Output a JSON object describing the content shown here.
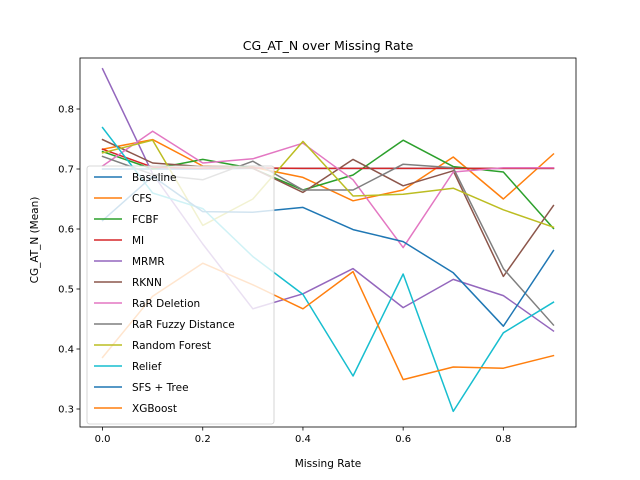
{
  "chart_data": {
    "type": "line",
    "title": "CG_AT_N over Missing Rate",
    "xlabel": "Missing Rate",
    "ylabel": "CG_AT_N (Mean)",
    "x": [
      0.0,
      0.1,
      0.2,
      0.3,
      0.4,
      0.5,
      0.6,
      0.7,
      0.8,
      0.9
    ],
    "xlim": [
      -0.045,
      0.945
    ],
    "ylim": [
      0.27,
      0.885
    ],
    "xticks": [
      0.0,
      0.2,
      0.4,
      0.6,
      0.8
    ],
    "xtick_labels": [
      "0.0",
      "0.2",
      "0.4",
      "0.6",
      "0.8"
    ],
    "yticks": [
      0.3,
      0.4,
      0.5,
      0.6,
      0.7,
      0.8
    ],
    "ytick_labels": [
      "0.3",
      "0.4",
      "0.5",
      "0.6",
      "0.7",
      "0.8"
    ],
    "grid": false,
    "legend_position": "lower-left",
    "series": [
      {
        "name": "Baseline",
        "color": "#1f77b4",
        "values": [
          0.7,
          0.7,
          0.7,
          0.701,
          0.701,
          0.701,
          0.701,
          0.701,
          0.701,
          0.701
        ]
      },
      {
        "name": "CFS",
        "color": "#ff7f0e",
        "values": [
          0.733,
          0.749,
          0.705,
          0.703,
          0.686,
          0.647,
          0.665,
          0.72,
          0.65,
          0.725
        ]
      },
      {
        "name": "FCBF",
        "color": "#2ca02c",
        "values": [
          0.729,
          0.7,
          0.716,
          0.701,
          0.665,
          0.69,
          0.748,
          0.704,
          0.695,
          0.601
        ]
      },
      {
        "name": "MI",
        "color": "#d62728",
        "values": [
          0.733,
          0.703,
          0.701,
          0.702,
          0.701,
          0.701,
          0.701,
          0.701,
          0.701,
          0.701
        ]
      },
      {
        "name": "MRMR",
        "color": "#9467bd",
        "values": [
          0.867,
          0.692,
          0.575,
          0.467,
          0.492,
          0.534,
          0.469,
          0.516,
          0.489,
          0.43
        ]
      },
      {
        "name": "RKNN",
        "color": "#8c564b",
        "values": [
          0.749,
          0.71,
          0.704,
          0.701,
          0.661,
          0.716,
          0.672,
          0.697,
          0.521,
          0.639
        ]
      },
      {
        "name": "RaR Deletion",
        "color": "#e377c2",
        "values": [
          0.705,
          0.763,
          0.71,
          0.717,
          0.743,
          0.682,
          0.569,
          0.695,
          0.702,
          0.702
        ]
      },
      {
        "name": "RaR Fuzzy Distance",
        "color": "#7f7f7f",
        "values": [
          0.721,
          0.691,
          0.682,
          0.713,
          0.665,
          0.665,
          0.708,
          0.702,
          0.534,
          0.44
        ]
      },
      {
        "name": "Random Forest",
        "color": "#bcbd22",
        "values": [
          0.727,
          0.748,
          0.606,
          0.65,
          0.746,
          0.655,
          0.658,
          0.668,
          0.632,
          0.603
        ]
      },
      {
        "name": "Relief",
        "color": "#17becf",
        "values": [
          0.769,
          0.66,
          0.634,
          0.554,
          0.491,
          0.355,
          0.525,
          0.296,
          0.427,
          0.478
        ]
      },
      {
        "name": "SFS + Tree",
        "color": "#1f77b4",
        "values": [
          0.614,
          0.688,
          0.629,
          0.628,
          0.636,
          0.599,
          0.579,
          0.527,
          0.438,
          0.564
        ]
      },
      {
        "name": "XGBoost",
        "color": "#ff7f0e",
        "values": [
          0.386,
          0.488,
          0.543,
          0.507,
          0.467,
          0.529,
          0.349,
          0.37,
          0.368,
          0.389
        ]
      }
    ]
  }
}
